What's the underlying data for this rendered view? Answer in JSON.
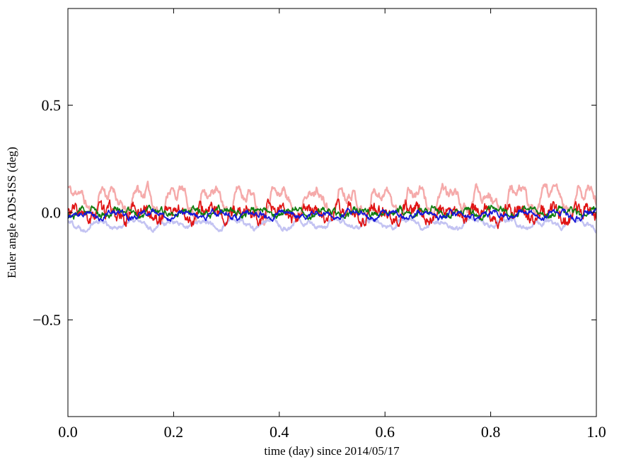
{
  "figure": {
    "background": "#ffffff",
    "frame_color": "#000000"
  },
  "chart_data": {
    "type": "line",
    "title": "",
    "xlabel": "time (day) since 2014/05/17",
    "ylabel": "Euler angle ADS-ISS (deg)",
    "xlim": [
      0.0,
      1.0
    ],
    "ylim": [
      -0.95,
      0.95
    ],
    "xticks": [
      0.0,
      0.2,
      0.4,
      0.6,
      0.8,
      1.0
    ],
    "xtick_labels": [
      "0.0",
      "0.2",
      "0.4",
      "0.6",
      "0.8",
      "1.0"
    ],
    "yticks": [
      -0.5,
      0.0,
      0.5
    ],
    "ytick_labels": [
      "−0.5",
      "0.0",
      "0.5"
    ],
    "grid": false,
    "legend": null,
    "points_per_series": 1000,
    "orbital_cycles_per_day": 15.5,
    "series": [
      {
        "name": "faded-red-euler-angle",
        "color": "#f5aaaa",
        "width": 2.4,
        "base": 0.062,
        "amp": 0.052,
        "freq_cycles": 15.5,
        "phase": 0.4,
        "h1": 1.0,
        "h2": 0.45,
        "h3": 0.3,
        "noise": 0.016,
        "smooth": 0.82,
        "seed": 11,
        "approx_range_deg": [
          -0.02,
          0.17
        ]
      },
      {
        "name": "faded-blue-euler-angle",
        "color": "#c3c3f2",
        "width": 2.4,
        "base": -0.053,
        "amp": 0.018,
        "freq_cycles": 15.5,
        "phase": 2.1,
        "h1": 1.0,
        "h2": 0.3,
        "h3": 0.2,
        "noise": 0.008,
        "smooth": 0.8,
        "seed": 22,
        "approx_range_deg": [
          -0.09,
          -0.01
        ]
      },
      {
        "name": "red-euler-angle",
        "color": "#e01414",
        "width": 1.7,
        "base": -0.004,
        "amp": 0.024,
        "freq_cycles": 15.5,
        "phase": 1.0,
        "h1": 1.0,
        "h2": 0.5,
        "h3": 0.4,
        "noise": 0.022,
        "smooth": 0.6,
        "seed": 33,
        "approx_range_deg": [
          -0.1,
          0.06
        ]
      },
      {
        "name": "green-euler-angle",
        "color": "#0f7d0f",
        "width": 1.7,
        "base": 0.002,
        "amp": 0.016,
        "freq_cycles": 15.5,
        "phase": 4.2,
        "h1": 1.0,
        "h2": 0.4,
        "h3": 0.3,
        "noise": 0.011,
        "smooth": 0.7,
        "seed": 44,
        "approx_range_deg": [
          -0.05,
          0.05
        ]
      },
      {
        "name": "blue-euler-angle",
        "color": "#1515d6",
        "width": 1.7,
        "base": -0.01,
        "amp": 0.013,
        "freq_cycles": 15.5,
        "phase": 5.3,
        "h1": 1.0,
        "h2": 0.4,
        "h3": 0.3,
        "noise": 0.009,
        "smooth": 0.7,
        "seed": 55,
        "approx_range_deg": [
          -0.05,
          0.03
        ]
      }
    ]
  }
}
